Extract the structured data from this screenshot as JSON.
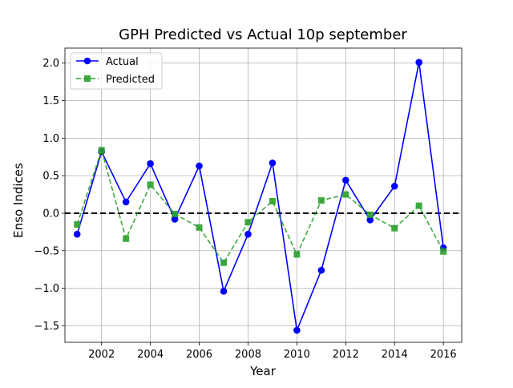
{
  "chart_data": {
    "type": "line",
    "title": "GPH Predicted vs Actual 10p september",
    "xlabel": "Year",
    "ylabel": "Enso Indices",
    "xlim": [
      2000.5,
      2016.75
    ],
    "ylim": [
      -1.72,
      2.2
    ],
    "x_ticks": [
      "2002",
      "2004",
      "2006",
      "2008",
      "2010",
      "2012",
      "2014",
      "2016"
    ],
    "x_tick_values": [
      2002,
      2004,
      2006,
      2008,
      2010,
      2012,
      2014,
      2016
    ],
    "y_ticks": [
      "2.0",
      "1.5",
      "1.0",
      "0.5",
      "0.0",
      "−0.5",
      "−1.0",
      "−1.5"
    ],
    "y_tick_values": [
      2.0,
      1.5,
      1.0,
      0.5,
      0.0,
      -0.5,
      -1.0,
      -1.5
    ],
    "grid": true,
    "legend_position": "top-left",
    "reference_line": {
      "y": 0,
      "color": "#000000",
      "style": "dashed"
    },
    "x": [
      2001,
      2002,
      2003,
      2004,
      2005,
      2006,
      2007,
      2008,
      2009,
      2010,
      2011,
      2012,
      2013,
      2014,
      2015,
      2016
    ],
    "series": [
      {
        "name": "Actual",
        "color": "#0000ff",
        "line_style": "solid",
        "marker": "circle",
        "values": [
          -0.28,
          0.82,
          0.15,
          0.66,
          -0.08,
          0.63,
          -1.04,
          -0.28,
          0.67,
          -1.56,
          -0.76,
          0.44,
          -0.09,
          0.36,
          2.01,
          -0.46
        ]
      },
      {
        "name": "Predicted",
        "color": "#2ca02c",
        "line_style": "dashed",
        "marker": "square",
        "values": [
          -0.15,
          0.84,
          -0.34,
          0.38,
          -0.01,
          -0.19,
          -0.66,
          -0.12,
          0.16,
          -0.55,
          0.17,
          0.25,
          -0.02,
          -0.2,
          0.1,
          -0.51
        ]
      }
    ]
  }
}
